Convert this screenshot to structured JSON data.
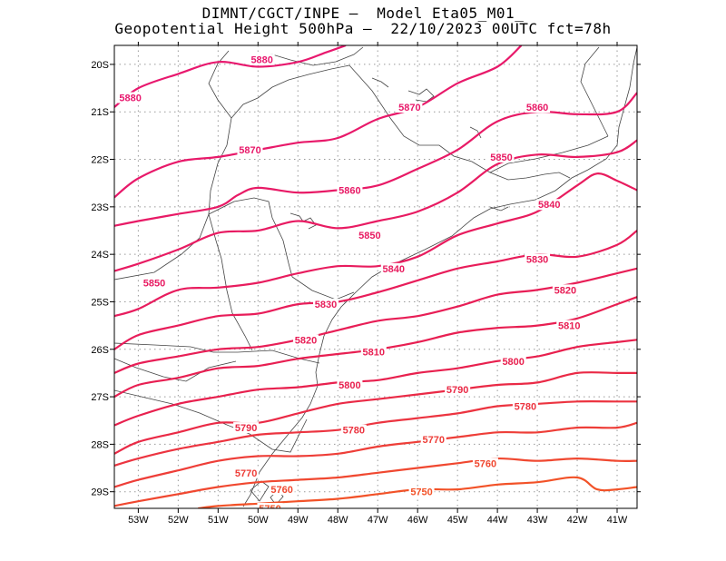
{
  "title": {
    "line1": "DIMNT/CGCT/INPE –  Model Eta05_M01_",
    "line2": "Geopotential Height 500hPa –  22/10/2023 00UTC fct=78h"
  },
  "map": {
    "lon_range": [
      -53.6,
      -40.5
    ],
    "lat_range": [
      -29.35,
      -19.6
    ],
    "x_ticks": [
      {
        "lon": -53,
        "label": "53W"
      },
      {
        "lon": -52,
        "label": "52W"
      },
      {
        "lon": -51,
        "label": "51W"
      },
      {
        "lon": -50,
        "label": "50W"
      },
      {
        "lon": -49,
        "label": "49W"
      },
      {
        "lon": -48,
        "label": "48W"
      },
      {
        "lon": -47,
        "label": "47W"
      },
      {
        "lon": -46,
        "label": "46W"
      },
      {
        "lon": -45,
        "label": "45W"
      },
      {
        "lon": -44,
        "label": "44W"
      },
      {
        "lon": -43,
        "label": "43W"
      },
      {
        "lon": -42,
        "label": "42W"
      },
      {
        "lon": -41,
        "label": "41W"
      }
    ],
    "y_ticks": [
      {
        "lat": -20,
        "label": "20S"
      },
      {
        "lat": -21,
        "label": "21S"
      },
      {
        "lat": -22,
        "label": "22S"
      },
      {
        "lat": -23,
        "label": "23S"
      },
      {
        "lat": -24,
        "label": "24S"
      },
      {
        "lat": -25,
        "label": "25S"
      },
      {
        "lat": -26,
        "label": "26S"
      },
      {
        "lat": -27,
        "label": "27S"
      },
      {
        "lat": -28,
        "label": "28S"
      },
      {
        "lat": -29,
        "label": "29S"
      }
    ],
    "contours": [
      {
        "value": 5880,
        "color": "#e8186e",
        "label_pos": [
          [
            -53.2,
            -20.7
          ],
          [
            -49.9,
            -19.9
          ]
        ],
        "points": [
          [
            -53.6,
            -20.9
          ],
          [
            -53.0,
            -20.5
          ],
          [
            -52.0,
            -20.2
          ],
          [
            -51.0,
            -19.95
          ],
          [
            -50.0,
            -20.05
          ],
          [
            -49.0,
            -19.95
          ],
          [
            -48.3,
            -19.75
          ],
          [
            -47.8,
            -19.6
          ]
        ]
      },
      {
        "value": 5870,
        "color": "#e8196a",
        "label_pos": [
          [
            -50.2,
            -21.8
          ],
          [
            -46.2,
            -20.9
          ]
        ],
        "points": [
          [
            -53.6,
            -22.8
          ],
          [
            -53.0,
            -22.4
          ],
          [
            -52.0,
            -22.05
          ],
          [
            -51.0,
            -21.95
          ],
          [
            -50.0,
            -21.8
          ],
          [
            -49.0,
            -21.65
          ],
          [
            -48.0,
            -21.55
          ],
          [
            -47.0,
            -21.15
          ],
          [
            -46.0,
            -20.9
          ],
          [
            -45.0,
            -20.4
          ],
          [
            -44.0,
            -20.05
          ],
          [
            -43.4,
            -19.6
          ]
        ]
      },
      {
        "value": 5860,
        "color": "#e81a66",
        "label_pos": [
          [
            -47.7,
            -22.65
          ],
          [
            -43.0,
            -20.9
          ]
        ],
        "points": [
          [
            -53.6,
            -23.4
          ],
          [
            -53.0,
            -23.3
          ],
          [
            -52.0,
            -23.15
          ],
          [
            -51.0,
            -23.0
          ],
          [
            -50.5,
            -22.75
          ],
          [
            -50.0,
            -22.6
          ],
          [
            -49.0,
            -22.7
          ],
          [
            -48.0,
            -22.65
          ],
          [
            -47.0,
            -22.55
          ],
          [
            -46.0,
            -22.2
          ],
          [
            -45.0,
            -21.8
          ],
          [
            -44.0,
            -21.2
          ],
          [
            -43.0,
            -21.0
          ],
          [
            -42.0,
            -21.05
          ],
          [
            -41.0,
            -21.0
          ],
          [
            -40.5,
            -20.6
          ]
        ]
      },
      {
        "value": 5850,
        "color": "#e81b62",
        "label_pos": [
          [
            -52.6,
            -24.6
          ],
          [
            -47.2,
            -23.6
          ],
          [
            -43.9,
            -21.95
          ]
        ],
        "points": [
          [
            -53.6,
            -24.35
          ],
          [
            -53.0,
            -24.2
          ],
          [
            -52.0,
            -23.9
          ],
          [
            -51.0,
            -23.55
          ],
          [
            -50.0,
            -23.5
          ],
          [
            -49.0,
            -23.3
          ],
          [
            -48.0,
            -23.45
          ],
          [
            -47.0,
            -23.3
          ],
          [
            -46.0,
            -23.1
          ],
          [
            -45.0,
            -22.7
          ],
          [
            -44.0,
            -22.1
          ],
          [
            -43.0,
            -21.9
          ],
          [
            -42.0,
            -21.95
          ],
          [
            -41.0,
            -21.85
          ],
          [
            -40.5,
            -21.6
          ]
        ]
      },
      {
        "value": 5840,
        "color": "#e81c5e",
        "label_pos": [
          [
            -46.6,
            -24.3
          ],
          [
            -42.7,
            -22.95
          ]
        ],
        "points": [
          [
            -53.6,
            -25.3
          ],
          [
            -53.0,
            -25.15
          ],
          [
            -52.0,
            -24.75
          ],
          [
            -51.0,
            -24.7
          ],
          [
            -50.0,
            -24.6
          ],
          [
            -49.0,
            -24.4
          ],
          [
            -48.0,
            -24.25
          ],
          [
            -47.0,
            -24.25
          ],
          [
            -46.0,
            -24.05
          ],
          [
            -45.0,
            -23.6
          ],
          [
            -44.0,
            -23.35
          ],
          [
            -43.0,
            -23.1
          ],
          [
            -42.0,
            -22.55
          ],
          [
            -41.5,
            -22.3
          ],
          [
            -41.0,
            -22.45
          ],
          [
            -40.5,
            -22.65
          ]
        ]
      },
      {
        "value": 5830,
        "color": "#e81d5a",
        "label_pos": [
          [
            -48.3,
            -25.05
          ],
          [
            -43.0,
            -24.1
          ]
        ],
        "points": [
          [
            -53.6,
            -26.0
          ],
          [
            -53.0,
            -25.7
          ],
          [
            -52.0,
            -25.5
          ],
          [
            -51.0,
            -25.3
          ],
          [
            -50.0,
            -25.25
          ],
          [
            -49.0,
            -25.05
          ],
          [
            -48.0,
            -25.0
          ],
          [
            -47.0,
            -24.8
          ],
          [
            -46.0,
            -24.55
          ],
          [
            -45.0,
            -24.3
          ],
          [
            -44.0,
            -24.15
          ],
          [
            -43.0,
            -24.0
          ],
          [
            -42.0,
            -24.05
          ],
          [
            -41.0,
            -23.8
          ],
          [
            -40.5,
            -23.5
          ]
        ]
      },
      {
        "value": 5820,
        "color": "#e81e56",
        "label_pos": [
          [
            -48.8,
            -25.8
          ],
          [
            -42.3,
            -24.75
          ]
        ],
        "points": [
          [
            -53.6,
            -26.5
          ],
          [
            -53.0,
            -26.3
          ],
          [
            -52.0,
            -26.15
          ],
          [
            -51.0,
            -26.0
          ],
          [
            -50.0,
            -25.95
          ],
          [
            -49.0,
            -25.8
          ],
          [
            -48.0,
            -25.6
          ],
          [
            -47.0,
            -25.4
          ],
          [
            -46.0,
            -25.3
          ],
          [
            -45.0,
            -25.1
          ],
          [
            -44.0,
            -24.85
          ],
          [
            -43.0,
            -24.75
          ],
          [
            -42.0,
            -24.6
          ],
          [
            -41.0,
            -24.4
          ],
          [
            -40.5,
            -24.3
          ]
        ]
      },
      {
        "value": 5810,
        "color": "#e81f52",
        "label_pos": [
          [
            -47.1,
            -26.05
          ],
          [
            -42.2,
            -25.5
          ]
        ],
        "points": [
          [
            -53.6,
            -27.0
          ],
          [
            -53.0,
            -26.75
          ],
          [
            -52.0,
            -26.6
          ],
          [
            -51.0,
            -26.4
          ],
          [
            -50.0,
            -26.35
          ],
          [
            -49.0,
            -26.2
          ],
          [
            -48.0,
            -26.1
          ],
          [
            -47.0,
            -26.0
          ],
          [
            -46.0,
            -25.85
          ],
          [
            -45.0,
            -25.65
          ],
          [
            -44.0,
            -25.55
          ],
          [
            -43.0,
            -25.5
          ],
          [
            -42.0,
            -25.35
          ],
          [
            -41.0,
            -25.05
          ],
          [
            -40.5,
            -24.9
          ]
        ]
      },
      {
        "value": 5800,
        "color": "#e8204e",
        "label_pos": [
          [
            -47.7,
            -26.75
          ],
          [
            -43.6,
            -26.25
          ]
        ],
        "points": [
          [
            -53.6,
            -27.6
          ],
          [
            -53.0,
            -27.4
          ],
          [
            -52.0,
            -27.15
          ],
          [
            -51.0,
            -27.0
          ],
          [
            -50.0,
            -26.85
          ],
          [
            -49.0,
            -26.8
          ],
          [
            -48.0,
            -26.7
          ],
          [
            -47.0,
            -26.65
          ],
          [
            -46.0,
            -26.5
          ],
          [
            -45.0,
            -26.4
          ],
          [
            -44.0,
            -26.25
          ],
          [
            -43.0,
            -26.15
          ],
          [
            -42.0,
            -25.95
          ],
          [
            -41.0,
            -25.85
          ],
          [
            -40.5,
            -25.8
          ]
        ]
      },
      {
        "value": 5790,
        "color": "#ea2a46",
        "label_pos": [
          [
            -50.3,
            -27.65
          ],
          [
            -45.0,
            -26.85
          ]
        ],
        "points": [
          [
            -53.6,
            -28.2
          ],
          [
            -53.0,
            -27.95
          ],
          [
            -52.0,
            -27.75
          ],
          [
            -51.0,
            -27.55
          ],
          [
            -50.0,
            -27.55
          ],
          [
            -49.0,
            -27.35
          ],
          [
            -48.0,
            -27.15
          ],
          [
            -47.0,
            -27.05
          ],
          [
            -46.0,
            -26.95
          ],
          [
            -45.0,
            -26.85
          ],
          [
            -44.0,
            -26.75
          ],
          [
            -43.0,
            -26.7
          ],
          [
            -42.0,
            -26.5
          ],
          [
            -41.0,
            -26.5
          ],
          [
            -40.5,
            -26.5
          ]
        ]
      },
      {
        "value": 5780,
        "color": "#ec3440",
        "label_pos": [
          [
            -47.6,
            -27.7
          ],
          [
            -43.3,
            -27.2
          ]
        ],
        "points": [
          [
            -53.6,
            -28.45
          ],
          [
            -53.0,
            -28.3
          ],
          [
            -52.0,
            -28.1
          ],
          [
            -51.0,
            -27.95
          ],
          [
            -50.0,
            -27.8
          ],
          [
            -49.0,
            -27.75
          ],
          [
            -48.0,
            -27.7
          ],
          [
            -47.0,
            -27.55
          ],
          [
            -46.0,
            -27.45
          ],
          [
            -45.0,
            -27.35
          ],
          [
            -44.0,
            -27.2
          ],
          [
            -43.0,
            -27.15
          ],
          [
            -42.0,
            -27.1
          ],
          [
            -41.0,
            -27.1
          ],
          [
            -40.5,
            -27.1
          ]
        ]
      },
      {
        "value": 5770,
        "color": "#ee3e38",
        "label_pos": [
          [
            -50.3,
            -28.6
          ],
          [
            -45.6,
            -27.9
          ]
        ],
        "points": [
          [
            -53.6,
            -28.9
          ],
          [
            -53.0,
            -28.75
          ],
          [
            -52.0,
            -28.55
          ],
          [
            -51.0,
            -28.35
          ],
          [
            -50.0,
            -28.25
          ],
          [
            -49.0,
            -28.25
          ],
          [
            -48.0,
            -28.2
          ],
          [
            -47.0,
            -28.05
          ],
          [
            -46.0,
            -27.95
          ],
          [
            -45.0,
            -27.85
          ],
          [
            -44.0,
            -27.75
          ],
          [
            -43.0,
            -27.75
          ],
          [
            -42.0,
            -27.65
          ],
          [
            -41.0,
            -27.65
          ],
          [
            -40.5,
            -27.55
          ]
        ]
      },
      {
        "value": 5760,
        "color": "#f04830",
        "label_pos": [
          [
            -49.4,
            -28.95
          ],
          [
            -44.3,
            -28.4
          ]
        ],
        "points": [
          [
            -53.6,
            -29.3
          ],
          [
            -53.0,
            -29.2
          ],
          [
            -52.0,
            -29.05
          ],
          [
            -51.0,
            -28.9
          ],
          [
            -50.0,
            -28.8
          ],
          [
            -49.0,
            -28.75
          ],
          [
            -48.0,
            -28.7
          ],
          [
            -47.0,
            -28.6
          ],
          [
            -46.0,
            -28.5
          ],
          [
            -45.0,
            -28.4
          ],
          [
            -44.0,
            -28.3
          ],
          [
            -43.0,
            -28.35
          ],
          [
            -42.0,
            -28.3
          ],
          [
            -41.0,
            -28.35
          ],
          [
            -40.5,
            -28.35
          ]
        ]
      },
      {
        "value": 5750,
        "color": "#f25228",
        "label_pos": [
          [
            -49.7,
            -29.35
          ],
          [
            -45.9,
            -29.0
          ]
        ],
        "points": [
          [
            -51.5,
            -29.35
          ],
          [
            -51.0,
            -29.3
          ],
          [
            -50.0,
            -29.25
          ],
          [
            -49.0,
            -29.2
          ],
          [
            -48.0,
            -29.15
          ],
          [
            -47.0,
            -29.05
          ],
          [
            -46.0,
            -28.95
          ],
          [
            -45.0,
            -28.95
          ],
          [
            -44.0,
            -28.85
          ],
          [
            -43.0,
            -28.8
          ],
          [
            -42.0,
            -28.7
          ],
          [
            -41.5,
            -28.95
          ],
          [
            -41.0,
            -28.95
          ],
          [
            -40.5,
            -28.9
          ]
        ]
      }
    ]
  }
}
